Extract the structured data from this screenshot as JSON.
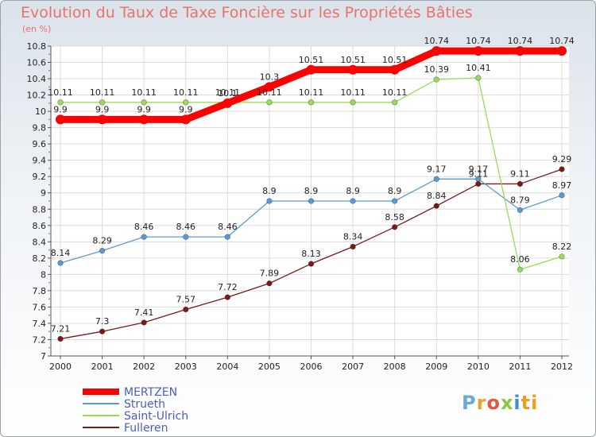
{
  "chart_data": {
    "type": "line",
    "title": "Evolution du Taux de Taxe Foncière sur les Propriétés Bâties",
    "unit_label": "(en %)",
    "x": [
      "2000",
      "2001",
      "2002",
      "2003",
      "2004",
      "2005",
      "2006",
      "2007",
      "2008",
      "2009",
      "2010",
      "2011",
      "2012"
    ],
    "ylim": [
      7,
      10.8
    ],
    "yticks": [
      "7",
      "7.2",
      "7.4",
      "7.6",
      "7.8",
      "8",
      "8.2",
      "8.4",
      "8.6",
      "8.8",
      "9",
      "9.2",
      "9.4",
      "9.6",
      "9.8",
      "10",
      "10.2",
      "10.4",
      "10.6",
      "10.8"
    ],
    "series": [
      {
        "name": "MERTZEN",
        "color": "#ff0000",
        "values": [
          9.9,
          9.9,
          9.9,
          9.9,
          10.1,
          10.3,
          10.51,
          10.51,
          10.51,
          10.74,
          10.74,
          10.74,
          10.74
        ],
        "labels": [
          "9.9",
          "9.9",
          "9.9",
          "9.9",
          "10.1",
          "10.3",
          "10.51",
          "10.51",
          "10.51",
          "10.74",
          "10.74",
          "10.74",
          "10.74"
        ]
      },
      {
        "name": "Strueth",
        "color": "#5b9bd5",
        "values": [
          8.14,
          8.29,
          8.46,
          8.46,
          8.46,
          8.9,
          8.9,
          8.9,
          8.9,
          9.17,
          9.17,
          8.79,
          8.97
        ],
        "labels": [
          "8.14",
          "8.29",
          "8.46",
          "8.46",
          "8.46",
          "8.9",
          "8.9",
          "8.9",
          "8.9",
          "9.17",
          "9.17",
          "8.79",
          "8.97"
        ]
      },
      {
        "name": "Saint-Ulrich",
        "color": "#99dd55",
        "values": [
          10.11,
          10.11,
          10.11,
          10.11,
          10.11,
          10.11,
          10.11,
          10.11,
          10.11,
          10.39,
          10.41,
          8.06,
          8.22
        ],
        "labels": [
          "10.11",
          "10.11",
          "10.11",
          "10.11",
          "10.11",
          "10.11",
          "10.11",
          "10.11",
          "10.11",
          "10.39",
          "10.41",
          "8.06",
          "8.22"
        ]
      },
      {
        "name": "Fulleren",
        "color": "#7a1a1a",
        "values": [
          7.21,
          7.3,
          7.41,
          7.57,
          7.72,
          7.89,
          8.13,
          8.34,
          8.58,
          8.84,
          9.11,
          9.11,
          9.29
        ],
        "labels": [
          "7.21",
          "7.3",
          "7.41",
          "7.57",
          "7.72",
          "7.89",
          "8.13",
          "8.34",
          "8.58",
          "8.84",
          "9.11",
          "9.11",
          "9.29"
        ]
      }
    ],
    "legend": [
      "MERTZEN",
      "Strueth",
      "Saint-Ulrich",
      "Fulleren"
    ]
  },
  "brand": {
    "logo_text": "Proxiti",
    "letters": [
      "P",
      "r",
      "o",
      "x",
      "i",
      "ti"
    ]
  }
}
